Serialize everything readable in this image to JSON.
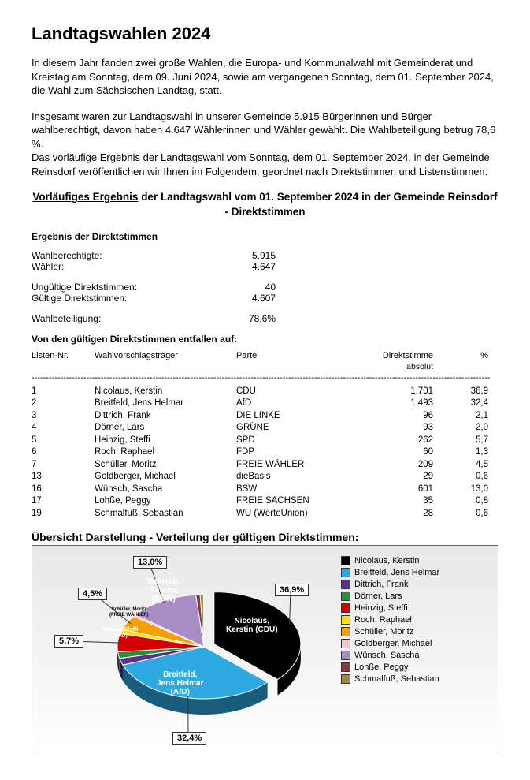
{
  "title": "Landtagswahlen 2024",
  "para1": "In diesem Jahr fanden zwei große Wahlen, die Europa- und Kommunalwahl mit Gemeinderat und Kreistag am Sonntag, dem 09. Juni 2024, sowie am vergangenen Sonntag, dem 01. September 2024, die Wahl zum Sächsischen Landtag, statt.",
  "para2": "Insgesamt waren zur Landtagswahl in unserer Gemeinde 5.915 Bürgerinnen und Bürger wahlberechtigt, davon haben 4.647 Wählerinnen und Wähler gewählt. Die Wahlbeteiligung betrug 78,6 %.",
  "para3": "Das vorläufige Ergebnis der Landtagswahl vom Sonntag, dem 01. September 2024, in der Gemeinde Reinsdorf veröffentlichen wir Ihnen im Folgendem, geordnet nach Direktstimmen und Listenstimmen.",
  "subheading_u": "Vorläufiges Ergebnis",
  "subheading_rest": " der Landtagswahl vom 01. September 2024 in der Gemeinde Reinsdorf - Direktstimmen",
  "section_title": "Ergebnis der Direktstimmen",
  "stats": {
    "wahlberechtigte_label": "Wahlberechtigte:",
    "wahlberechtigte_value": "5.915",
    "waehler_label": "Wähler:",
    "waehler_value": "4.647",
    "ungueltig_label": "Ungültige Direktstimmen:",
    "ungueltig_value": "40",
    "gueltig_label": "Gültige Direktstimmen:",
    "gueltig_value": "4.607",
    "beteiligung_label": "Wahlbeteiligung:",
    "beteiligung_value": "78,6%"
  },
  "entfallen": "Von den gültigen Direktstimmen entfallen auf:",
  "headers": {
    "nr": "Listen-Nr.",
    "name": "Wahlvorschlagsträger",
    "partei": "Partei",
    "abs": "Direktstimme",
    "abs2": "absolut",
    "pct": "%"
  },
  "rows": [
    {
      "nr": "1",
      "name": "Nicolaus, Kerstin",
      "partei": "CDU",
      "abs": "1.701",
      "pct": "36,9"
    },
    {
      "nr": "2",
      "name": "Breitfeld, Jens Helmar",
      "partei": "AfD",
      "abs": "1.493",
      "pct": "32,4"
    },
    {
      "nr": "3",
      "name": "Dittrich, Frank",
      "partei": "DIE LINKE",
      "abs": "96",
      "pct": "2,1"
    },
    {
      "nr": "4",
      "name": "Dörner, Lars",
      "partei": "GRÜNE",
      "abs": "93",
      "pct": "2,0"
    },
    {
      "nr": "5",
      "name": "Heinzig, Steffi",
      "partei": "SPD",
      "abs": "262",
      "pct": "5,7"
    },
    {
      "nr": "6",
      "name": "Roch, Raphael",
      "partei": "FDP",
      "abs": "60",
      "pct": "1,3"
    },
    {
      "nr": "7",
      "name": "Schüller, Moritz",
      "partei": "FREIE WÄHLER",
      "abs": "209",
      "pct": "4,5"
    },
    {
      "nr": "13",
      "name": "Goldberger, Michael",
      "partei": "dieBasis",
      "abs": "29",
      "pct": "0,6"
    },
    {
      "nr": "16",
      "name": "Wünsch, Sascha",
      "partei": "BSW",
      "abs": "601",
      "pct": "13,0"
    },
    {
      "nr": "17",
      "name": "Lohße, Peggy",
      "partei": "FREIE SACHSEN",
      "abs": "35",
      "pct": "0,8"
    },
    {
      "nr": "19",
      "name": "Schmalfuß, Sebastian",
      "partei": "WU (WerteUnion)",
      "abs": "28",
      "pct": "0,6"
    }
  ],
  "chart_title": "Übersicht Darstellung - Verteilung der gültigen Direktstimmen:",
  "chart": {
    "type": "pie-3d",
    "background_gradient": [
      "#e8e8e8",
      "#f8f8f8",
      "#ffffff"
    ],
    "slices": [
      {
        "label": "Nicolaus, Kerstin",
        "sub": "(CDU)",
        "pct": 36.9,
        "color": "#000000",
        "leader_pct": "36,9%"
      },
      {
        "label": "Breitfeld, Jens Helmar",
        "sub": "(AfD)",
        "pct": 32.4,
        "color": "#2ea8e0",
        "leader_pct": "32,4%"
      },
      {
        "label": "Dittrich, Frank",
        "sub": "",
        "pct": 2.1,
        "color": "#5b2d8e"
      },
      {
        "label": "Dörner, Lars",
        "sub": "",
        "pct": 2.0,
        "color": "#2e8b3d"
      },
      {
        "label": "Heinzig, Steffi",
        "sub": "(SPD)",
        "pct": 5.7,
        "color": "#d40000",
        "leader_pct": "5,7%"
      },
      {
        "label": "Roch, Raphael",
        "sub": "",
        "pct": 1.3,
        "color": "#ffe400"
      },
      {
        "label": "Schüller, Moritz",
        "sub": "(FREIE WÄHLER)",
        "pct": 4.5,
        "color": "#f5a000",
        "leader_pct": "4,5%"
      },
      {
        "label": "Goldberger, Michael",
        "sub": "",
        "pct": 0.6,
        "color": "#f4c3d6"
      },
      {
        "label": "Wünsch, Sascha",
        "sub": "(BSW)",
        "pct": 13.0,
        "color": "#a88cc4",
        "leader_pct": "13,0%"
      },
      {
        "label": "Lohße, Peggy",
        "sub": "",
        "pct": 0.8,
        "color": "#8b3a3a"
      },
      {
        "label": "Schmalfuß, Sebastian",
        "sub": "",
        "pct": 0.6,
        "color": "#9a8a4a"
      }
    ],
    "legend": [
      {
        "label": "Nicolaus, Kerstin",
        "color": "#000000"
      },
      {
        "label": "Breitfeld, Jens Helmar",
        "color": "#2ea8e0"
      },
      {
        "label": "Dittrich, Frank",
        "color": "#5b2d8e"
      },
      {
        "label": "Dörner, Lars",
        "color": "#2e8b3d"
      },
      {
        "label": "Heinzig, Steffi",
        "color": "#d40000"
      },
      {
        "label": "Roch, Raphael",
        "color": "#ffe400"
      },
      {
        "label": "Schüller, Moritz",
        "color": "#f5a000"
      },
      {
        "label": "Goldberger, Michael",
        "color": "#f4c3d6"
      },
      {
        "label": "Wünsch, Sascha",
        "color": "#a88cc4"
      },
      {
        "label": "Lohße, Peggy",
        "color": "#8b3a3a"
      },
      {
        "label": "Schmalfuß, Sebastian",
        "color": "#9a8a4a"
      }
    ]
  }
}
